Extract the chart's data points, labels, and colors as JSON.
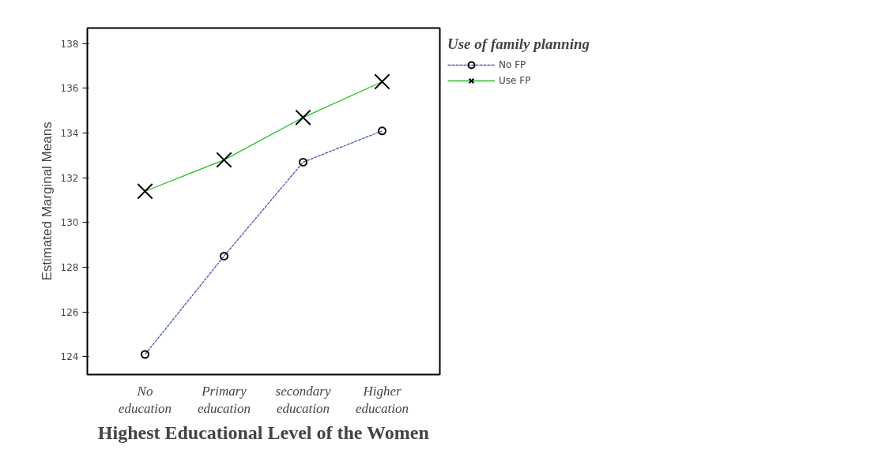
{
  "chart_data": {
    "type": "line",
    "xlabel": "Highest Educational Level of the Women",
    "ylabel": "Estimated Marginal Means",
    "legend_title": "Use of family planning",
    "categories": [
      "No\neducation",
      "Primary\neducation",
      "secondary\neducation",
      "Higher\neducation"
    ],
    "series": [
      {
        "name": "No FP",
        "color": "#4a5ab0",
        "values": [
          124.1,
          128.5,
          132.7,
          134.1
        ],
        "marker": "circle",
        "line_style": "dashed"
      },
      {
        "name": "Use FP",
        "color": "#22c022",
        "values": [
          131.4,
          132.8,
          134.7,
          136.3
        ],
        "marker": "cross",
        "line_style": "solid"
      }
    ],
    "ylim": [
      123.2,
      138.7
    ],
    "yticks": [
      124,
      126,
      128,
      130,
      132,
      134,
      136,
      138
    ],
    "grid": false,
    "legend": "top right"
  }
}
